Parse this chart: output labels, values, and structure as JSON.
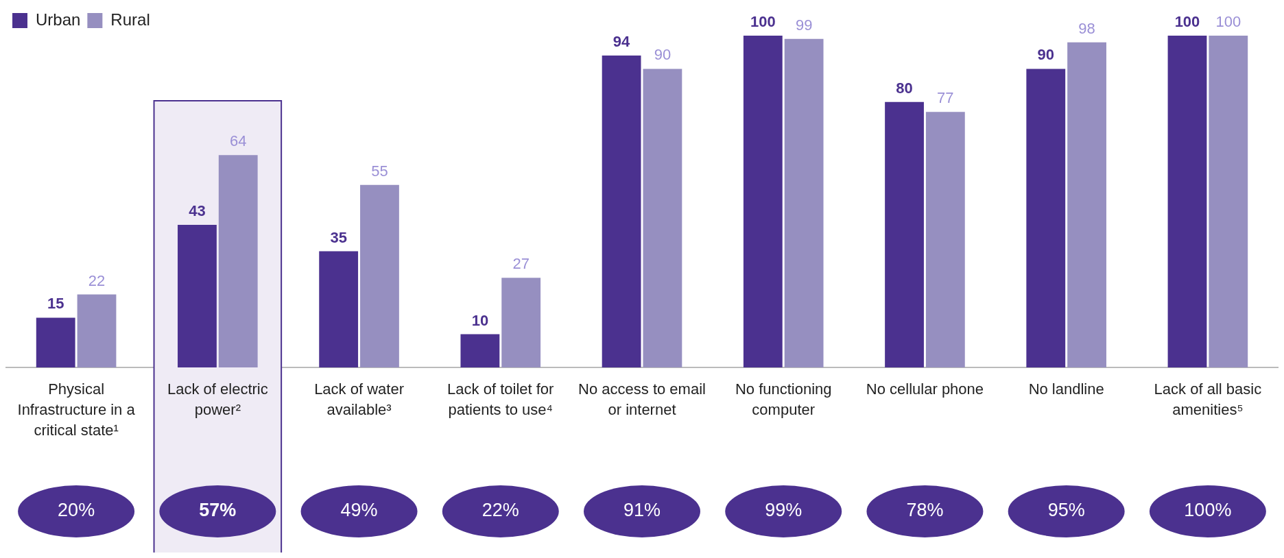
{
  "chart_data": {
    "type": "bar",
    "categories": [
      "Physical Infrastructure in a critical state¹",
      "Lack of electric power²",
      "Lack of water available³",
      "Lack of toilet for patients to use⁴",
      "No access to email or internet",
      "No functioning computer",
      "No cellular phone",
      "No landline",
      "Lack of all basic amenities⁵"
    ],
    "series": [
      {
        "name": "Urban",
        "color": "#4b318f",
        "values": [
          15,
          43,
          35,
          10,
          94,
          100,
          80,
          90,
          100
        ]
      },
      {
        "name": "Rural",
        "color": "#968fc0",
        "values": [
          22,
          64,
          55,
          27,
          90,
          99,
          77,
          98,
          100
        ]
      }
    ],
    "data_labels": true,
    "tick_labels": "x",
    "legend": "top left",
    "grid": false,
    "annotations": [
      "20%",
      "57%",
      "49%",
      "22%",
      "91%",
      "99%",
      "78%",
      "95%",
      "100%"
    ],
    "bands": [
      {
        "axis": "x",
        "from": "Lack of electric power²",
        "to": "Lack of electric power²",
        "color": "#efebf5"
      }
    ]
  }
}
